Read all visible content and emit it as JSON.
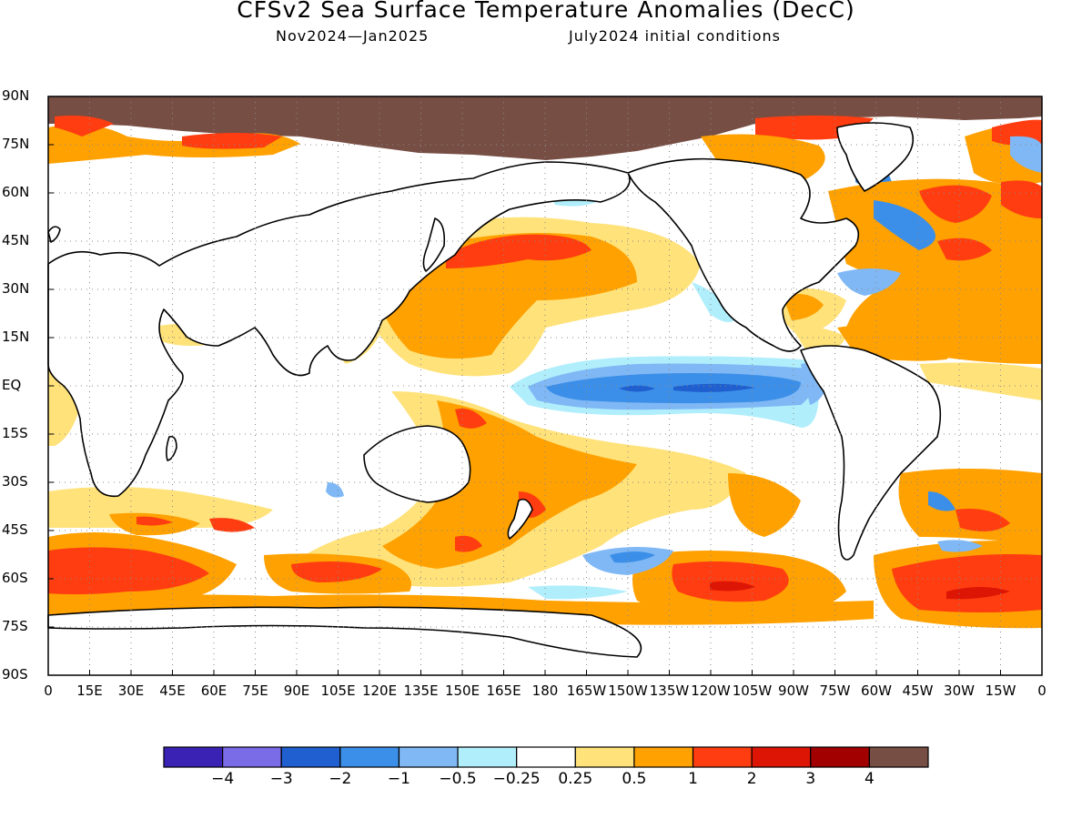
{
  "title": "CFSv2 Sea Surface Temperature Anomalies (DecC)",
  "subtitle_left": "Nov2024—Jan2025",
  "subtitle_right": "July2024 initial conditions",
  "lat_labels": [
    "90N",
    "75N",
    "60N",
    "45N",
    "30N",
    "15N",
    "EQ",
    "15S",
    "30S",
    "45S",
    "60S",
    "75S",
    "90S"
  ],
  "lon_labels": [
    "0",
    "15E",
    "30E",
    "45E",
    "60E",
    "75E",
    "90E",
    "105E",
    "120E",
    "135E",
    "150E",
    "165E",
    "180",
    "165W",
    "150W",
    "135W",
    "120W",
    "105W",
    "90W",
    "75W",
    "60W",
    "45W",
    "30W",
    "15W",
    "0"
  ],
  "colorbar": {
    "colors": [
      "#3a23b4",
      "#7a6be6",
      "#1f5fcf",
      "#3c8fe8",
      "#7fb8f5",
      "#b1eefc",
      "#ffffff",
      "#ffe27a",
      "#ffa100",
      "#ff3d10",
      "#dc1505",
      "#a20000",
      "#774e44"
    ],
    "labels": [
      "−4",
      "−3",
      "−2",
      "−1",
      "−0.5",
      "−0.25",
      "0.25",
      "0.5",
      "1",
      "2",
      "3",
      "4"
    ]
  },
  "land_color": "#ffffff",
  "ice_color": "#774e44"
}
